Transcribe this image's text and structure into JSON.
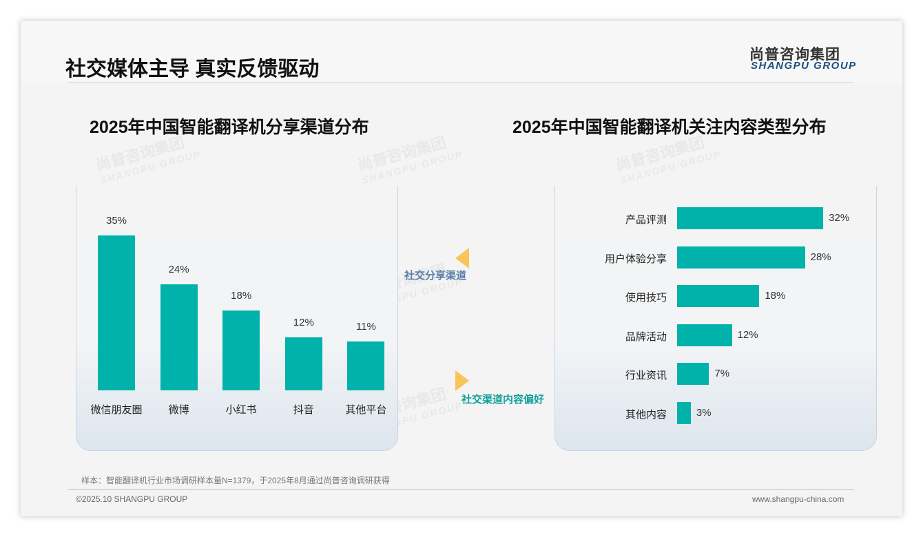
{
  "header": {
    "title": "社交媒体主导 真实反馈驱动",
    "logo_cn": "尚普咨询集团",
    "logo_en": "SHANGPU GROUP"
  },
  "watermark": {
    "cn": "尚普咨询集团",
    "en": "SHANGPU GROUP"
  },
  "connectors": {
    "top": "社交分享渠道",
    "bottom": "社交渠道内容偏好",
    "accent": "#f9c55a"
  },
  "footer": {
    "note": "样本：智能翻译机行业市场调研样本量N=1379，于2025年8月通过尚普咨询调研获得",
    "copyright": "©2025.10 SHANGPU GROUP",
    "url": "www.shangpu-china.com"
  },
  "chart_data": [
    {
      "type": "bar",
      "title": "2025年中国智能翻译机分享渠道分布",
      "categories": [
        "微信朋友圈",
        "微博",
        "小红书",
        "抖音",
        "其他平台"
      ],
      "values": [
        35,
        24,
        18,
        12,
        11
      ],
      "value_labels": [
        "35%",
        "24%",
        "18%",
        "12%",
        "11%"
      ],
      "unit": "%",
      "color": "#00b2a9"
    },
    {
      "type": "bar",
      "orientation": "horizontal",
      "title": "2025年中国智能翻译机关注内容类型分布",
      "categories": [
        "产品评测",
        "用户体验分享",
        "使用技巧",
        "品牌活动",
        "行业资讯",
        "其他内容"
      ],
      "values": [
        32,
        28,
        18,
        12,
        7,
        3
      ],
      "value_labels": [
        "32%",
        "28%",
        "18%",
        "12%",
        "7%",
        "3%"
      ],
      "unit": "%",
      "color": "#00b2a9"
    }
  ]
}
